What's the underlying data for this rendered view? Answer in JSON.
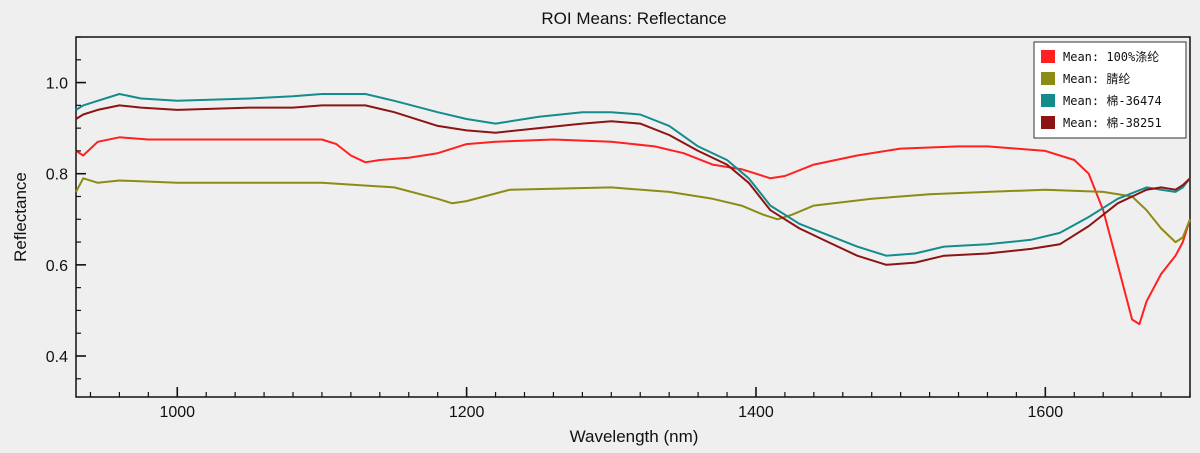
{
  "chart_data": {
    "type": "line",
    "title": "ROI Means: Reflectance",
    "xlabel": "Wavelength (nm)",
    "ylabel": "Reflectance",
    "xlim": [
      930,
      1700
    ],
    "ylim": [
      0.31,
      1.1
    ],
    "xticks": [
      1000,
      1200,
      1400,
      1600
    ],
    "xtick_labels": [
      "1000",
      "1200",
      "1400",
      "1600"
    ],
    "yticks": [
      0.4,
      0.6,
      0.8,
      1.0
    ],
    "ytick_labels": [
      "0.4",
      "0.6",
      "0.8",
      "1.0"
    ],
    "grid": false,
    "legend_position": "top-right",
    "series": [
      {
        "name": "Mean: 100%涤纶",
        "color": "#ff2020",
        "x": [
          930,
          935,
          945,
          960,
          980,
          1000,
          1040,
          1080,
          1100,
          1110,
          1120,
          1130,
          1140,
          1160,
          1180,
          1200,
          1220,
          1260,
          1300,
          1330,
          1350,
          1370,
          1390,
          1400,
          1410,
          1420,
          1440,
          1470,
          1500,
          1540,
          1560,
          1580,
          1600,
          1620,
          1630,
          1640,
          1650,
          1660,
          1665,
          1670,
          1680,
          1690,
          1695,
          1700
        ],
        "values": [
          0.85,
          0.84,
          0.87,
          0.88,
          0.875,
          0.875,
          0.875,
          0.875,
          0.875,
          0.865,
          0.84,
          0.825,
          0.83,
          0.835,
          0.845,
          0.865,
          0.87,
          0.875,
          0.87,
          0.86,
          0.845,
          0.82,
          0.81,
          0.8,
          0.79,
          0.795,
          0.82,
          0.84,
          0.855,
          0.86,
          0.86,
          0.855,
          0.85,
          0.83,
          0.8,
          0.72,
          0.6,
          0.48,
          0.47,
          0.52,
          0.58,
          0.62,
          0.65,
          0.7
        ]
      },
      {
        "name": "Mean: 腈纶",
        "color": "#8c8c14",
        "x": [
          930,
          935,
          945,
          960,
          1000,
          1050,
          1100,
          1150,
          1180,
          1190,
          1200,
          1230,
          1300,
          1340,
          1370,
          1390,
          1405,
          1415,
          1425,
          1440,
          1480,
          1520,
          1560,
          1600,
          1640,
          1660,
          1670,
          1680,
          1690,
          1695,
          1700
        ],
        "values": [
          0.76,
          0.79,
          0.78,
          0.785,
          0.78,
          0.78,
          0.78,
          0.77,
          0.745,
          0.735,
          0.74,
          0.765,
          0.77,
          0.76,
          0.745,
          0.73,
          0.71,
          0.7,
          0.71,
          0.73,
          0.745,
          0.755,
          0.76,
          0.765,
          0.76,
          0.75,
          0.72,
          0.68,
          0.65,
          0.66,
          0.7
        ]
      },
      {
        "name": "Mean: 棉-36474",
        "color": "#148c8c",
        "x": [
          930,
          935,
          945,
          960,
          975,
          1000,
          1050,
          1080,
          1100,
          1130,
          1150,
          1180,
          1200,
          1220,
          1250,
          1280,
          1300,
          1320,
          1340,
          1360,
          1380,
          1395,
          1410,
          1430,
          1450,
          1470,
          1490,
          1510,
          1530,
          1560,
          1590,
          1610,
          1630,
          1650,
          1670,
          1680,
          1690,
          1695,
          1700
        ],
        "values": [
          0.94,
          0.95,
          0.96,
          0.975,
          0.965,
          0.96,
          0.965,
          0.97,
          0.975,
          0.975,
          0.96,
          0.935,
          0.92,
          0.91,
          0.925,
          0.935,
          0.935,
          0.93,
          0.905,
          0.86,
          0.83,
          0.79,
          0.73,
          0.69,
          0.665,
          0.64,
          0.62,
          0.625,
          0.64,
          0.645,
          0.655,
          0.67,
          0.705,
          0.745,
          0.77,
          0.765,
          0.76,
          0.77,
          0.79
        ]
      },
      {
        "name": "Mean: 棉-38251",
        "color": "#8c1414",
        "x": [
          930,
          935,
          945,
          960,
          975,
          1000,
          1050,
          1080,
          1100,
          1130,
          1150,
          1180,
          1200,
          1220,
          1250,
          1280,
          1300,
          1320,
          1340,
          1360,
          1380,
          1395,
          1410,
          1430,
          1450,
          1470,
          1490,
          1510,
          1530,
          1560,
          1590,
          1610,
          1630,
          1650,
          1670,
          1680,
          1690,
          1695,
          1700
        ],
        "values": [
          0.92,
          0.93,
          0.94,
          0.95,
          0.945,
          0.94,
          0.945,
          0.945,
          0.95,
          0.95,
          0.935,
          0.905,
          0.895,
          0.89,
          0.9,
          0.91,
          0.915,
          0.91,
          0.885,
          0.85,
          0.82,
          0.78,
          0.72,
          0.68,
          0.65,
          0.62,
          0.6,
          0.605,
          0.62,
          0.625,
          0.635,
          0.645,
          0.685,
          0.735,
          0.765,
          0.77,
          0.765,
          0.775,
          0.79
        ]
      }
    ]
  }
}
